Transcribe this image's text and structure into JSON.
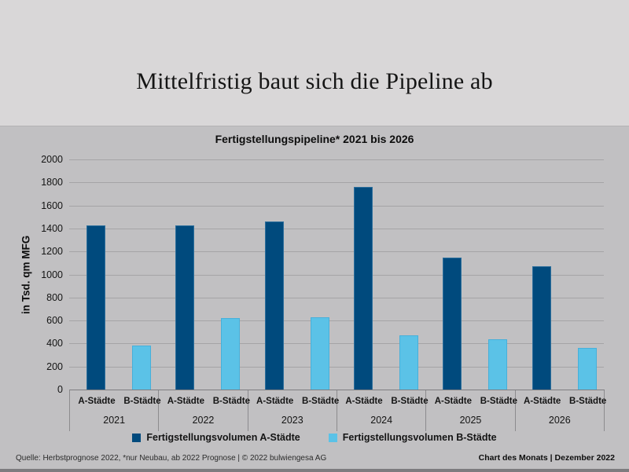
{
  "slide": {
    "title": "Mittelfristig baut sich die Pipeline ab",
    "footer_left": "Quelle: Herbstprognose 2022, *nur Neubau, ab 2022 Prognose | © 2022 bulwiengesa AG",
    "footer_right": "Chart des Monats | Dezember 2022"
  },
  "chart_data": {
    "type": "bar",
    "title": "Fertigstellungspipeline* 2021 bis 2026",
    "ylabel": "in Tsd. qm MFG",
    "xlabel": "",
    "categories": [
      "2021",
      "2022",
      "2023",
      "2024",
      "2025",
      "2026"
    ],
    "sub_categories": [
      "A-Städte",
      "B-Städte"
    ],
    "series": [
      {
        "name": "Fertigstellungsvolumen A-Städte",
        "color": "#004a7d",
        "border_color": "#2d6f9c",
        "values": [
          1430,
          1430,
          1460,
          1760,
          1150,
          1070
        ]
      },
      {
        "name": "Fertigstellungsvolumen B-Städte",
        "color": "#5bc2e7",
        "border_color": "#47b0da",
        "values": [
          380,
          620,
          630,
          470,
          440,
          360
        ]
      }
    ],
    "ylim": [
      0,
      2000
    ],
    "ytick_step": 200,
    "grid": true,
    "legend_position": "bottom",
    "colors": {
      "page_background": "#d9d7d8",
      "chart_background": "#c1c0c2",
      "gridline": "#a5a4a6",
      "axis_line": "#7f7e81"
    }
  }
}
